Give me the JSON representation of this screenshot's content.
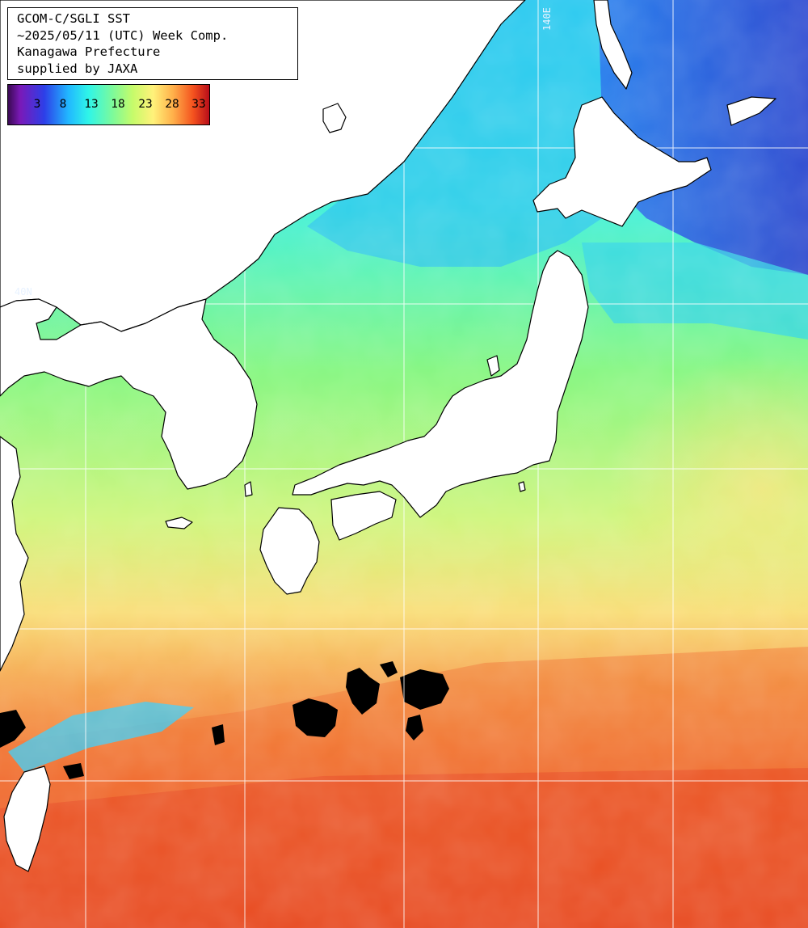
{
  "title": {
    "line1": "GCOM-C/SGLI SST",
    "line2": "~2025/05/11 (UTC) Week Comp.",
    "line3": "Kanagawa Prefecture",
    "line4": "supplied by JAXA"
  },
  "colorbar": {
    "ticks": [
      "3",
      "8",
      "13",
      "18",
      "23",
      "28",
      "33"
    ]
  },
  "grid": {
    "lat_label": "40N",
    "lon_label": "140E"
  },
  "colors": {
    "land": "#ffffff",
    "cloud": "#000000",
    "gridline": "#ffffff"
  }
}
